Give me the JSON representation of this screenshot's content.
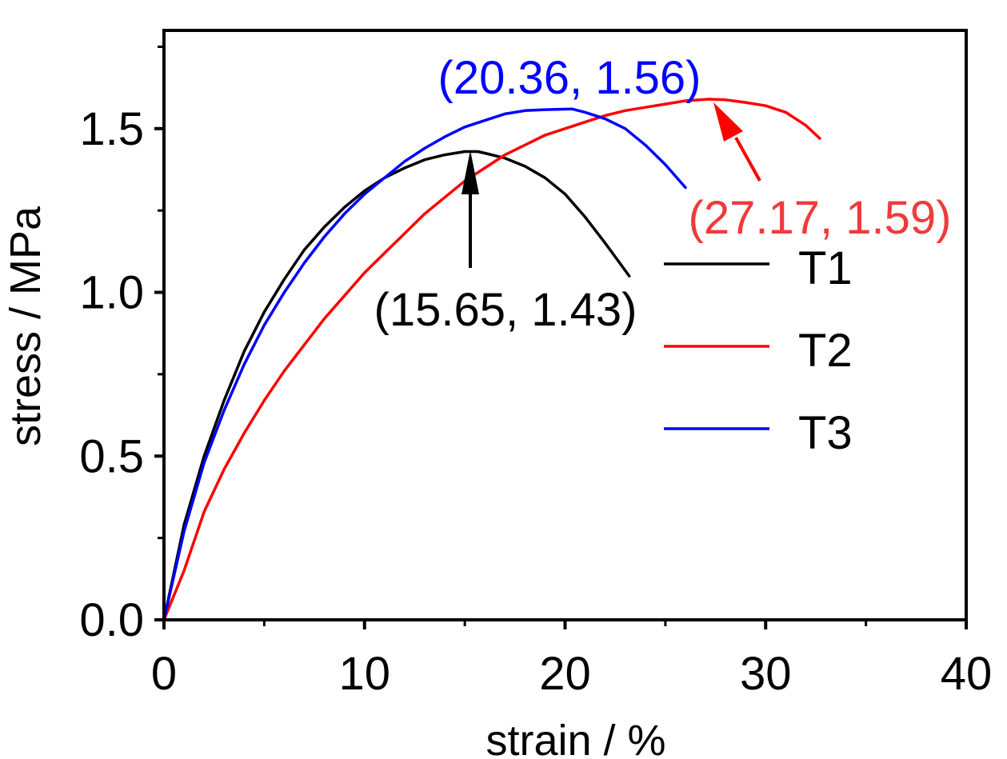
{
  "chart_data": {
    "type": "line",
    "title": "",
    "xlabel": "strain / %",
    "ylabel": "stress / MPa",
    "xlim": [
      0,
      40
    ],
    "ylim": [
      0,
      1.8
    ],
    "xticks": [
      0,
      10,
      20,
      30,
      40
    ],
    "xtick_labels": [
      "0",
      "10",
      "20",
      "30",
      "40"
    ],
    "yticks": [
      0.0,
      0.5,
      1.0,
      1.5
    ],
    "ytick_labels": [
      "0.0",
      "0.5",
      "1.0",
      "1.5"
    ],
    "grid": false,
    "legend_position": "right",
    "series": [
      {
        "name": "T1",
        "color": "#000000",
        "x": [
          0,
          1,
          2,
          3,
          4,
          5,
          6,
          7,
          8,
          9,
          10,
          11,
          12,
          13,
          14,
          15,
          15.65,
          16,
          17,
          18,
          19,
          20,
          21,
          22,
          23.2
        ],
        "y": [
          0,
          0.29,
          0.5,
          0.67,
          0.82,
          0.94,
          1.04,
          1.13,
          1.2,
          1.26,
          1.31,
          1.35,
          1.38,
          1.405,
          1.42,
          1.43,
          1.43,
          1.425,
          1.41,
          1.385,
          1.35,
          1.3,
          1.23,
          1.15,
          1.05
        ]
      },
      {
        "name": "T2",
        "color": "#ff0000",
        "x": [
          0,
          1,
          2,
          3,
          4,
          5,
          6,
          7,
          8,
          9,
          10,
          11,
          12,
          13,
          14,
          15,
          16,
          17,
          18,
          19,
          20,
          21,
          22,
          23,
          24,
          25,
          26,
          27.17,
          28,
          29,
          30,
          31,
          32,
          32.7
        ],
        "y": [
          0,
          0.15,
          0.33,
          0.46,
          0.57,
          0.67,
          0.76,
          0.84,
          0.92,
          0.99,
          1.06,
          1.12,
          1.18,
          1.24,
          1.29,
          1.34,
          1.38,
          1.42,
          1.45,
          1.48,
          1.5,
          1.52,
          1.54,
          1.555,
          1.565,
          1.575,
          1.585,
          1.59,
          1.588,
          1.58,
          1.57,
          1.55,
          1.51,
          1.47
        ]
      },
      {
        "name": "T3",
        "color": "#0000ff",
        "x": [
          0,
          1,
          2,
          3,
          4,
          5,
          6,
          7,
          8,
          9,
          10,
          11,
          12,
          13,
          14,
          15,
          16,
          17,
          18,
          19,
          20.36,
          21,
          22,
          23,
          24,
          25,
          26
        ],
        "y": [
          0,
          0.27,
          0.48,
          0.64,
          0.78,
          0.9,
          1.0,
          1.09,
          1.17,
          1.24,
          1.3,
          1.35,
          1.4,
          1.44,
          1.475,
          1.505,
          1.525,
          1.545,
          1.555,
          1.558,
          1.56,
          1.55,
          1.53,
          1.5,
          1.45,
          1.39,
          1.32
        ]
      }
    ],
    "annotations": [
      {
        "text": "(15.65, 1.43)",
        "x": 15.65,
        "y": 1.43,
        "color": "#000000"
      },
      {
        "text": "(20.36, 1.56)",
        "x": 20.36,
        "y": 1.56,
        "color": "#0000ff"
      },
      {
        "text": "(27.17, 1.59)",
        "x": 27.17,
        "y": 1.59,
        "color": "#ee3b3b"
      }
    ]
  }
}
